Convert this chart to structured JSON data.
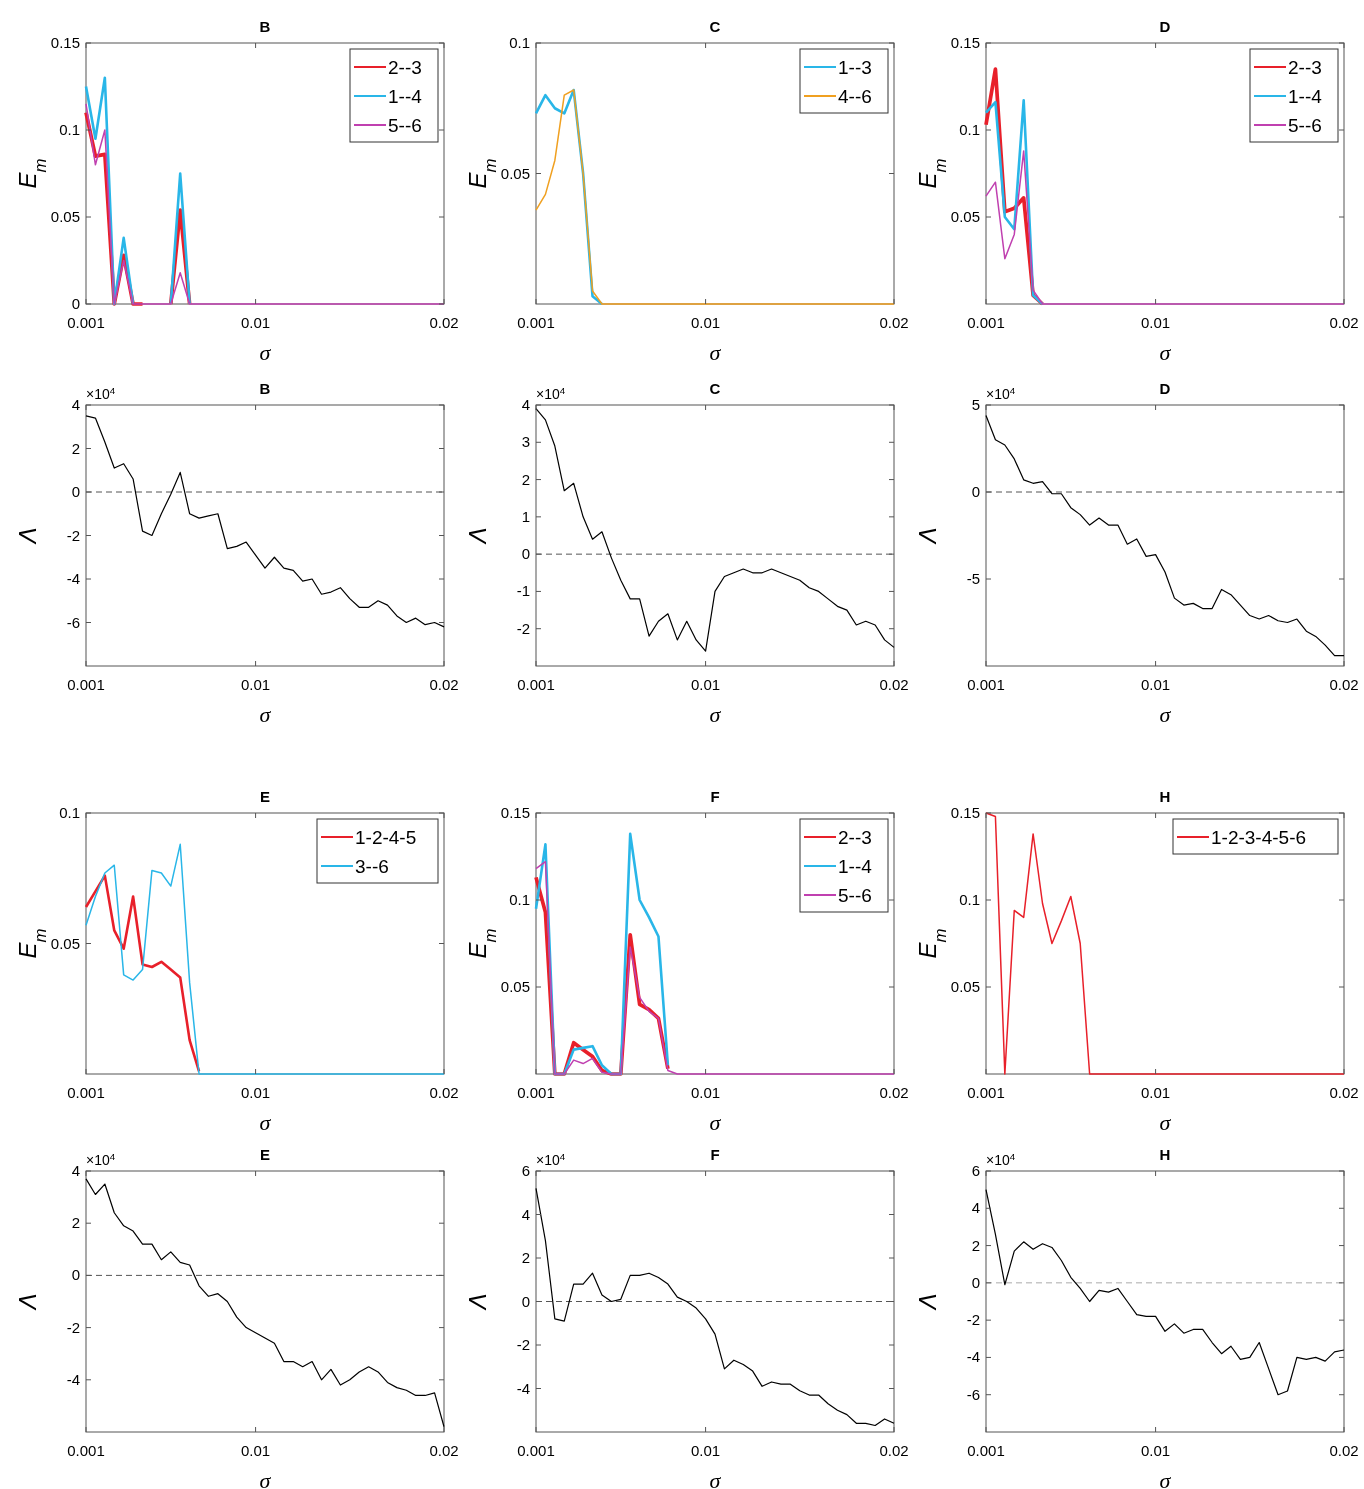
{
  "chart_data": [
    {
      "type": "line",
      "title": "B",
      "xlabel": "σ",
      "ylabel": "E$_{m}$",
      "xlim": [
        0.001,
        0.02
      ],
      "xticks": [
        0.001,
        0.01,
        0.02
      ],
      "ylim": [
        0,
        0.15
      ],
      "yticks": [
        0,
        0.05,
        0.1,
        0.15
      ],
      "legend": "top right",
      "x": [
        0.001,
        0.0015,
        0.002,
        0.0025,
        0.003,
        0.0035,
        0.004,
        0.0045,
        0.005,
        0.0055,
        0.006,
        0.0065,
        0.007,
        0.0075,
        0.008,
        0.0085,
        0.009,
        0.0095,
        0.01,
        0.0105,
        0.011,
        0.0115,
        0.012,
        0.0125,
        0.013,
        0.0135,
        0.014,
        0.0145,
        0.015,
        0.0155,
        0.016,
        0.0165,
        0.017,
        0.0175,
        0.018,
        0.0185,
        0.019,
        0.0195,
        0.02
      ],
      "series": [
        {
          "name": "2--3",
          "color": "#e8202a",
          "values": [
            0.11,
            0.085,
            0.086,
            0,
            0.028,
            0,
            0,
            null,
            null,
            0,
            0.054,
            0,
            null,
            null,
            null,
            null,
            null,
            null,
            null,
            null,
            null,
            null,
            null,
            null,
            null,
            null,
            null,
            null,
            null,
            null,
            null,
            null,
            null,
            null,
            null,
            null,
            null,
            null,
            null
          ]
        },
        {
          "name": "1--4",
          "color": "#29b6e8",
          "values": [
            0.125,
            0.095,
            0.13,
            0,
            0.038,
            0,
            null,
            null,
            null,
            0,
            0.075,
            0,
            null,
            null,
            null,
            null,
            null,
            null,
            null,
            null,
            null,
            null,
            null,
            null,
            null,
            null,
            null,
            null,
            null,
            null,
            null,
            null,
            null,
            null,
            null,
            null,
            null,
            null,
            null
          ]
        },
        {
          "name": "5--6",
          "color": "#c040b0",
          "values": [
            0.115,
            0.08,
            0.1,
            0,
            0.025,
            0,
            0,
            0,
            0,
            0,
            0.018,
            0,
            0,
            0,
            0,
            0,
            0,
            0,
            0,
            0,
            0,
            0,
            0,
            0,
            0,
            0,
            0,
            0,
            0,
            0,
            0,
            0,
            0,
            0,
            0,
            0,
            0,
            0,
            0
          ]
        }
      ]
    },
    {
      "type": "line",
      "title": "C",
      "xlabel": "σ",
      "ylabel": "E$_{m}$",
      "xlim": [
        0.001,
        0.02
      ],
      "xticks": [
        0.001,
        0.01,
        0.02
      ],
      "ylim": [
        0,
        0.1
      ],
      "yticks": [
        0.05,
        0.1
      ],
      "legend": "top right",
      "x": [
        0.001,
        0.0015,
        0.002,
        0.0025,
        0.003,
        0.0035,
        0.004,
        0.0045,
        0.005,
        0.0055,
        0.006,
        0.0065,
        0.007,
        0.0075,
        0.008,
        0.0085,
        0.009,
        0.0095,
        0.01,
        0.0105,
        0.011,
        0.0115,
        0.012,
        0.0125,
        0.013,
        0.0135,
        0.014,
        0.0145,
        0.015,
        0.0155,
        0.016,
        0.0165,
        0.017,
        0.0175,
        0.018,
        0.0185,
        0.019,
        0.0195,
        0.02
      ],
      "series": [
        {
          "name": "1--3",
          "color": "#29b6e8",
          "values": [
            0.073,
            0.08,
            0.075,
            0.073,
            0.082,
            0.05,
            0.003,
            0,
            null,
            null,
            null,
            null,
            null,
            null,
            null,
            null,
            null,
            null,
            null,
            null,
            null,
            null,
            null,
            null,
            null,
            null,
            null,
            null,
            null,
            null,
            null,
            null,
            null,
            null,
            null,
            null,
            null,
            null,
            null
          ]
        },
        {
          "name": "4--6",
          "color": "#f0a020",
          "values": [
            0.036,
            0.042,
            0.055,
            0.08,
            0.082,
            0.05,
            0.005,
            0,
            0,
            0,
            0,
            0,
            0,
            0,
            0,
            0,
            0,
            0,
            0,
            0,
            0,
            0,
            0,
            0,
            0,
            0,
            0,
            0,
            0,
            0,
            0,
            0,
            0,
            0,
            0,
            0,
            0,
            0,
            0
          ]
        }
      ]
    },
    {
      "type": "line",
      "title": "D",
      "xlabel": "σ",
      "ylabel": "E$_{m}$",
      "xlim": [
        0.001,
        0.02
      ],
      "xticks": [
        0.001,
        0.01,
        0.02
      ],
      "ylim": [
        0,
        0.15
      ],
      "yticks": [
        0.05,
        0.1,
        0.15
      ],
      "legend": "top right",
      "x": [
        0.001,
        0.0015,
        0.002,
        0.0025,
        0.003,
        0.0035,
        0.004,
        0.0045,
        0.005,
        0.0055,
        0.006,
        0.0065,
        0.007,
        0.0075,
        0.008,
        0.0085,
        0.009,
        0.0095,
        0.01,
        0.0105,
        0.011,
        0.0115,
        0.012,
        0.0125,
        0.013,
        0.0135,
        0.014,
        0.0145,
        0.015,
        0.0155,
        0.016,
        0.0165,
        0.017,
        0.0175,
        0.018,
        0.0185,
        0.019,
        0.0195,
        0.02
      ],
      "series": [
        {
          "name": "2--3",
          "color": "#e8202a",
          "values": [
            0.103,
            0.135,
            0.053,
            0.055,
            0.061,
            0.005,
            0,
            null,
            null,
            null,
            null,
            null,
            null,
            null,
            null,
            null,
            null,
            null,
            null,
            null,
            null,
            null,
            null,
            null,
            null,
            null,
            null,
            null,
            null,
            null,
            null,
            null,
            null,
            null,
            null,
            null,
            null,
            null,
            null
          ]
        },
        {
          "name": "1--4",
          "color": "#29b6e8",
          "values": [
            0.11,
            0.116,
            0.05,
            0.043,
            0.117,
            0.005,
            0,
            null,
            null,
            null,
            null,
            null,
            null,
            null,
            null,
            null,
            null,
            null,
            null,
            null,
            null,
            null,
            null,
            null,
            null,
            null,
            null,
            null,
            null,
            null,
            null,
            null,
            null,
            null,
            null,
            null,
            null,
            null,
            null
          ]
        },
        {
          "name": "5--6",
          "color": "#c040b0",
          "values": [
            0.062,
            0.07,
            0.026,
            0.04,
            0.088,
            0.008,
            0,
            0,
            0,
            0,
            0,
            0,
            0,
            0,
            0,
            0,
            0,
            0,
            0,
            0,
            0,
            0,
            0,
            0,
            0,
            0,
            0,
            0,
            0,
            0,
            0,
            0,
            0,
            0,
            0,
            0,
            0,
            0,
            0
          ]
        }
      ]
    },
    {
      "type": "line",
      "title": "B",
      "xlabel": "σ",
      "ylabel": "Λ",
      "annotations": [
        "×10$^{4}$"
      ],
      "xlim": [
        0.001,
        0.02
      ],
      "xticks": [
        0.001,
        0.01,
        0.02
      ],
      "ylim": [
        -8,
        4
      ],
      "yticks": [
        -6,
        -4,
        -2,
        0,
        2,
        4
      ],
      "ref_lines": [
        {
          "axis": "y",
          "value": 0,
          "color": "#555555",
          "line_style": "dashed"
        }
      ],
      "x": [
        0.001,
        0.0015,
        0.002,
        0.0025,
        0.003,
        0.0035,
        0.004,
        0.0045,
        0.005,
        0.0055,
        0.006,
        0.0065,
        0.007,
        0.0075,
        0.008,
        0.0085,
        0.009,
        0.0095,
        0.01,
        0.0105,
        0.011,
        0.0115,
        0.012,
        0.0125,
        0.013,
        0.0135,
        0.014,
        0.0145,
        0.015,
        0.0155,
        0.016,
        0.0165,
        0.017,
        0.0175,
        0.018,
        0.0185,
        0.019,
        0.0195,
        0.02
      ],
      "series": [
        {
          "color": "#000000",
          "values": [
            3.5,
            3.4,
            2.3,
            1.1,
            1.3,
            0.6,
            -1.8,
            -2.0,
            -1.0,
            -0.1,
            0.9,
            -1.0,
            -1.2,
            -1.1,
            -1.0,
            -2.6,
            -2.5,
            -2.3,
            -2.9,
            -3.5,
            -3.0,
            -3.5,
            -3.6,
            -4.1,
            -4.0,
            -4.7,
            -4.6,
            -4.4,
            -4.9,
            -5.3,
            -5.3,
            -5.0,
            -5.2,
            -5.7,
            -6.0,
            -5.8,
            -6.1,
            -6.0,
            -6.2
          ]
        }
      ]
    },
    {
      "type": "line",
      "title": "C",
      "xlabel": "σ",
      "ylabel": "Λ",
      "annotations": [
        "×10$^{4}$"
      ],
      "xlim": [
        0.001,
        0.02
      ],
      "xticks": [
        0.001,
        0.01,
        0.02
      ],
      "ylim": [
        -3,
        4
      ],
      "yticks": [
        -2,
        -1,
        0,
        1,
        2,
        3,
        4
      ],
      "ref_lines": [
        {
          "axis": "y",
          "value": 0,
          "color": "#555555",
          "line_style": "dashed"
        }
      ],
      "x": [
        0.001,
        0.0015,
        0.002,
        0.0025,
        0.003,
        0.0035,
        0.004,
        0.0045,
        0.005,
        0.0055,
        0.006,
        0.0065,
        0.007,
        0.0075,
        0.008,
        0.0085,
        0.009,
        0.0095,
        0.01,
        0.0105,
        0.011,
        0.0115,
        0.012,
        0.0125,
        0.013,
        0.0135,
        0.014,
        0.0145,
        0.015,
        0.0155,
        0.016,
        0.0165,
        0.017,
        0.0175,
        0.018,
        0.0185,
        0.019,
        0.0195,
        0.02
      ],
      "series": [
        {
          "color": "#000000",
          "values": [
            3.9,
            3.6,
            2.9,
            1.7,
            1.9,
            1.0,
            0.4,
            0.6,
            -0.1,
            -0.7,
            -1.2,
            -1.2,
            -2.2,
            -1.8,
            -1.6,
            -2.3,
            -1.8,
            -2.3,
            -2.6,
            -1.0,
            -0.6,
            -0.5,
            -0.4,
            -0.5,
            -0.5,
            -0.4,
            -0.5,
            -0.6,
            -0.7,
            -0.9,
            -1.0,
            -1.2,
            -1.4,
            -1.5,
            -1.9,
            -1.8,
            -1.9,
            -2.3,
            -2.5
          ]
        }
      ]
    },
    {
      "type": "line",
      "title": "D",
      "xlabel": "σ",
      "ylabel": "Λ",
      "annotations": [
        "×10$^{4}$"
      ],
      "xlim": [
        0.001,
        0.02
      ],
      "xticks": [
        0.001,
        0.01,
        0.02
      ],
      "ylim": [
        -10,
        5
      ],
      "yticks": [
        -5,
        0,
        5
      ],
      "ref_lines": [
        {
          "axis": "y",
          "value": 0,
          "color": "#555555",
          "line_style": "dashed"
        }
      ],
      "x": [
        0.001,
        0.0015,
        0.002,
        0.0025,
        0.003,
        0.0035,
        0.004,
        0.0045,
        0.005,
        0.0055,
        0.006,
        0.0065,
        0.007,
        0.0075,
        0.008,
        0.0085,
        0.009,
        0.0095,
        0.01,
        0.0105,
        0.011,
        0.0115,
        0.012,
        0.0125,
        0.013,
        0.0135,
        0.014,
        0.0145,
        0.015,
        0.0155,
        0.016,
        0.0165,
        0.017,
        0.0175,
        0.018,
        0.0185,
        0.019,
        0.0195,
        0.02
      ],
      "series": [
        {
          "color": "#000000",
          "values": [
            4.4,
            3.0,
            2.7,
            1.9,
            0.7,
            0.5,
            0.6,
            -0.1,
            -0.1,
            -0.9,
            -1.3,
            -1.9,
            -1.5,
            -1.9,
            -1.9,
            -3.0,
            -2.7,
            -3.7,
            -3.6,
            -4.6,
            -6.1,
            -6.5,
            -6.4,
            -6.7,
            -6.7,
            -5.6,
            -5.9,
            -6.5,
            -7.1,
            -7.3,
            -7.1,
            -7.4,
            -7.5,
            -7.3,
            -8.0,
            -8.3,
            -8.8,
            -9.4,
            -9.4
          ]
        }
      ]
    },
    {
      "type": "line",
      "title": "E",
      "xlabel": "σ",
      "ylabel": "E$_{m}$",
      "xlim": [
        0.001,
        0.02
      ],
      "xticks": [
        0.001,
        0.01,
        0.02
      ],
      "ylim": [
        0,
        0.1
      ],
      "yticks": [
        0.05,
        0.1
      ],
      "legend": "top right",
      "x": [
        0.001,
        0.0015,
        0.002,
        0.0025,
        0.003,
        0.0035,
        0.004,
        0.0045,
        0.005,
        0.0055,
        0.006,
        0.0065,
        0.007,
        0.0075,
        0.008,
        0.0085,
        0.009,
        0.0095,
        0.01,
        0.0105,
        0.011,
        0.0115,
        0.012,
        0.0125,
        0.013,
        0.0135,
        0.014,
        0.0145,
        0.015,
        0.0155,
        0.016,
        0.0165,
        0.017,
        0.0175,
        0.018,
        0.0185,
        0.019,
        0.0195,
        0.02
      ],
      "series": [
        {
          "name": "1-2-4-5",
          "color": "#e8202a",
          "values": [
            0.064,
            0.07,
            0.076,
            0.055,
            0.048,
            0.068,
            0.042,
            0.041,
            0.043,
            0.04,
            0.037,
            0.013,
            0.001,
            null,
            null,
            null,
            null,
            null,
            null,
            null,
            null,
            null,
            null,
            null,
            null,
            null,
            null,
            null,
            null,
            null,
            null,
            null,
            null,
            null,
            null,
            null,
            null,
            null,
            null
          ]
        },
        {
          "name": "3--6",
          "color": "#29b6e8",
          "values": [
            0.057,
            0.068,
            0.077,
            0.08,
            0.038,
            0.036,
            0.04,
            0.078,
            0.077,
            0.072,
            0.088,
            0.035,
            0,
            0,
            0,
            0,
            0,
            0,
            0,
            0,
            0,
            0,
            0,
            0,
            0,
            0,
            0,
            0,
            0,
            0,
            0,
            0,
            0,
            0,
            0,
            0,
            0,
            0,
            0
          ]
        }
      ]
    },
    {
      "type": "line",
      "title": "F",
      "xlabel": "σ",
      "ylabel": "E$_{m}$",
      "xlim": [
        0.001,
        0.02
      ],
      "xticks": [
        0.001,
        0.01,
        0.02
      ],
      "ylim": [
        0,
        0.15
      ],
      "yticks": [
        0.05,
        0.1,
        0.15
      ],
      "legend": "top right",
      "x": [
        0.001,
        0.0015,
        0.002,
        0.0025,
        0.003,
        0.0035,
        0.004,
        0.0045,
        0.005,
        0.0055,
        0.006,
        0.0065,
        0.007,
        0.0075,
        0.008,
        0.0085,
        0.009,
        0.0095,
        0.01,
        0.0105,
        0.011,
        0.0115,
        0.012,
        0.0125,
        0.013,
        0.0135,
        0.014,
        0.0145,
        0.015,
        0.0155,
        0.016,
        0.0165,
        0.017,
        0.0175,
        0.018,
        0.0185,
        0.019,
        0.0195,
        0.02
      ],
      "series": [
        {
          "name": "2--3",
          "color": "#e8202a",
          "values": [
            0.113,
            0.093,
            0,
            0,
            0.018,
            0.014,
            0.01,
            0.002,
            0,
            0,
            0.08,
            0.04,
            0.037,
            0.032,
            0.003,
            null,
            null,
            null,
            null,
            null,
            null,
            null,
            null,
            null,
            null,
            null,
            null,
            null,
            null,
            null,
            null,
            null,
            null,
            null,
            null,
            null,
            null,
            null,
            null
          ]
        },
        {
          "name": "1--4",
          "color": "#29b6e8",
          "values": [
            0.095,
            0.132,
            0,
            0,
            0.014,
            0.015,
            0.016,
            0.005,
            0,
            0,
            0.138,
            0.1,
            0.09,
            0.079,
            0.005,
            null,
            null,
            null,
            null,
            null,
            null,
            null,
            null,
            null,
            null,
            null,
            null,
            null,
            null,
            null,
            null,
            null,
            null,
            null,
            null,
            null,
            null,
            null,
            null
          ]
        },
        {
          "name": "5--6",
          "color": "#c040b0",
          "values": [
            0.118,
            0.122,
            0,
            0,
            0.008,
            0.006,
            0.009,
            0.001,
            0,
            0,
            0.073,
            0.044,
            0.036,
            0.032,
            0.002,
            0,
            0,
            0,
            0,
            0,
            0,
            0,
            0,
            0,
            0,
            0,
            0,
            0,
            0,
            0,
            0,
            0,
            0,
            0,
            0,
            0,
            0,
            0,
            0
          ]
        }
      ]
    },
    {
      "type": "line",
      "title": "H",
      "xlabel": "σ",
      "ylabel": "E$_{m}$",
      "xlim": [
        0.001,
        0.02
      ],
      "xticks": [
        0.001,
        0.01,
        0.02
      ],
      "ylim": [
        0,
        0.15
      ],
      "yticks": [
        0.05,
        0.1,
        0.15
      ],
      "legend": "top right",
      "x": [
        0.001,
        0.0015,
        0.002,
        0.0025,
        0.003,
        0.0035,
        0.004,
        0.0045,
        0.005,
        0.0055,
        0.006,
        0.0065,
        0.007,
        0.0075,
        0.008,
        0.0085,
        0.009,
        0.0095,
        0.01,
        0.0105,
        0.011,
        0.0115,
        0.012,
        0.0125,
        0.013,
        0.0135,
        0.014,
        0.0145,
        0.015,
        0.0155,
        0.016,
        0.0165,
        0.017,
        0.0175,
        0.018,
        0.0185,
        0.019,
        0.0195,
        0.02
      ],
      "series": [
        {
          "name": "1-2-3-4-5-6",
          "color": "#e8202a",
          "values": [
            0.15,
            0.148,
            0,
            0.094,
            0.09,
            0.138,
            0.098,
            0.075,
            0.088,
            0.102,
            0.075,
            0,
            0,
            0,
            0,
            0,
            0,
            0,
            0,
            0,
            0,
            0,
            0,
            0,
            0,
            0,
            0,
            0,
            0,
            0,
            0,
            0,
            0,
            0,
            0,
            0,
            0,
            0,
            0
          ]
        }
      ]
    },
    {
      "type": "line",
      "title": "E",
      "xlabel": "σ",
      "ylabel": "Λ",
      "annotations": [
        "×10$^{4}$"
      ],
      "xlim": [
        0.001,
        0.02
      ],
      "xticks": [
        0.001,
        0.01,
        0.02
      ],
      "ylim": [
        -6,
        4
      ],
      "yticks": [
        -4,
        -2,
        0,
        2,
        4
      ],
      "ref_lines": [
        {
          "axis": "y",
          "value": 0,
          "color": "#555555",
          "line_style": "dashed"
        }
      ],
      "x": [
        0.001,
        0.0015,
        0.002,
        0.0025,
        0.003,
        0.0035,
        0.004,
        0.0045,
        0.005,
        0.0055,
        0.006,
        0.0065,
        0.007,
        0.0075,
        0.008,
        0.0085,
        0.009,
        0.0095,
        0.01,
        0.0105,
        0.011,
        0.0115,
        0.012,
        0.0125,
        0.013,
        0.0135,
        0.014,
        0.0145,
        0.015,
        0.0155,
        0.016,
        0.0165,
        0.017,
        0.0175,
        0.018,
        0.0185,
        0.019,
        0.0195,
        0.02
      ],
      "series": [
        {
          "color": "#000000",
          "values": [
            3.7,
            3.1,
            3.5,
            2.4,
            1.9,
            1.7,
            1.2,
            1.2,
            0.6,
            0.9,
            0.5,
            0.4,
            -0.4,
            -0.8,
            -0.7,
            -1.0,
            -1.6,
            -2.0,
            -2.2,
            -2.4,
            -2.6,
            -3.3,
            -3.3,
            -3.5,
            -3.3,
            -4.0,
            -3.6,
            -4.2,
            -4.0,
            -3.7,
            -3.5,
            -3.7,
            -4.1,
            -4.3,
            -4.4,
            -4.6,
            -4.6,
            -4.5,
            -5.8
          ]
        }
      ]
    },
    {
      "type": "line",
      "title": "F",
      "xlabel": "σ",
      "ylabel": "Λ",
      "annotations": [
        "×10$^{4}$"
      ],
      "xlim": [
        0.001,
        0.02
      ],
      "xticks": [
        0.001,
        0.01,
        0.02
      ],
      "ylim": [
        -6,
        6
      ],
      "yticks": [
        -4,
        -2,
        0,
        2,
        4,
        6
      ],
      "ref_lines": [
        {
          "axis": "y",
          "value": 0,
          "color": "#555555",
          "line_style": "dashed"
        }
      ],
      "x": [
        0.001,
        0.0015,
        0.002,
        0.0025,
        0.003,
        0.0035,
        0.004,
        0.0045,
        0.005,
        0.0055,
        0.006,
        0.0065,
        0.007,
        0.0075,
        0.008,
        0.0085,
        0.009,
        0.0095,
        0.01,
        0.0105,
        0.011,
        0.0115,
        0.012,
        0.0125,
        0.013,
        0.0135,
        0.014,
        0.0145,
        0.015,
        0.0155,
        0.016,
        0.0165,
        0.017,
        0.0175,
        0.018,
        0.0185,
        0.019,
        0.0195,
        0.02
      ],
      "series": [
        {
          "color": "#000000",
          "values": [
            5.2,
            2.8,
            -0.8,
            -0.9,
            0.8,
            0.8,
            1.3,
            0.3,
            0.0,
            0.1,
            1.2,
            1.2,
            1.3,
            1.1,
            0.8,
            0.2,
            0.0,
            -0.3,
            -0.8,
            -1.5,
            -3.1,
            -2.7,
            -2.9,
            -3.2,
            -3.9,
            -3.7,
            -3.8,
            -3.8,
            -4.1,
            -4.3,
            -4.3,
            -4.7,
            -5.0,
            -5.2,
            -5.6,
            -5.6,
            -5.7,
            -5.4,
            -5.6
          ]
        }
      ]
    },
    {
      "type": "line",
      "title": "H",
      "xlabel": "σ",
      "ylabel": "Λ",
      "annotations": [
        "×10$^{4}$"
      ],
      "xlim": [
        0.001,
        0.02
      ],
      "xticks": [
        0.001,
        0.01,
        0.02
      ],
      "ylim": [
        -8,
        6
      ],
      "yticks": [
        -6,
        -4,
        -2,
        0,
        2,
        4,
        6
      ],
      "ref_lines": [
        {
          "axis": "y",
          "value": 0,
          "color": "#aaaaaa",
          "line_style": "dashed"
        }
      ],
      "x": [
        0.001,
        0.0015,
        0.002,
        0.0025,
        0.003,
        0.0035,
        0.004,
        0.0045,
        0.005,
        0.0055,
        0.006,
        0.0065,
        0.007,
        0.0075,
        0.008,
        0.0085,
        0.009,
        0.0095,
        0.01,
        0.0105,
        0.011,
        0.0115,
        0.012,
        0.0125,
        0.013,
        0.0135,
        0.014,
        0.0145,
        0.015,
        0.0155,
        0.016,
        0.0165,
        0.017,
        0.0175,
        0.018,
        0.0185,
        0.019,
        0.0195,
        0.02
      ],
      "series": [
        {
          "color": "#000000",
          "values": [
            5.0,
            2.6,
            -0.1,
            1.7,
            2.2,
            1.8,
            2.1,
            1.9,
            1.2,
            0.3,
            -0.3,
            -1.0,
            -0.4,
            -0.5,
            -0.3,
            -1.0,
            -1.7,
            -1.8,
            -1.8,
            -2.6,
            -2.2,
            -2.7,
            -2.5,
            -2.5,
            -3.2,
            -3.8,
            -3.4,
            -4.1,
            -4.0,
            -3.2,
            -4.6,
            -6.0,
            -5.8,
            -4.0,
            -4.1,
            -4.0,
            -4.2,
            -3.7,
            -3.6
          ]
        }
      ]
    }
  ]
}
